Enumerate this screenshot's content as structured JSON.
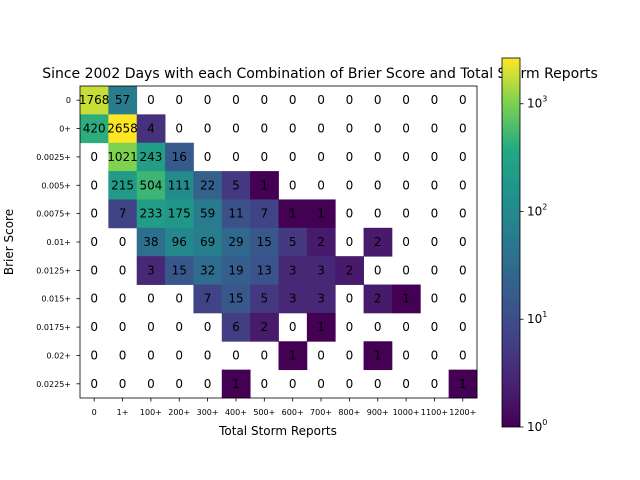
{
  "chart_data": {
    "type": "heatmap",
    "title": "Since 2002 Days with each Combination of Brier Score and Total Storm Reports",
    "xlabel": "Total Storm Reports",
    "ylabel": "Brier Score",
    "x_categories": [
      "0",
      "1+",
      "100+",
      "200+",
      "300+",
      "400+",
      "500+",
      "600+",
      "700+",
      "800+",
      "900+",
      "1000+",
      "1100+",
      "1200+"
    ],
    "y_categories": [
      "0",
      "0+",
      "0.0025+",
      "0.005+",
      "0.0075+",
      "0.01+",
      "0.0125+",
      "0.015+",
      "0.0175+",
      "0.02+",
      "0.0225+"
    ],
    "values": [
      [
        1768,
        57,
        0,
        0,
        0,
        0,
        0,
        0,
        0,
        0,
        0,
        0,
        0,
        0
      ],
      [
        420,
        2658,
        4,
        0,
        0,
        0,
        0,
        0,
        0,
        0,
        0,
        0,
        0,
        0
      ],
      [
        0,
        1021,
        243,
        16,
        0,
        0,
        0,
        0,
        0,
        0,
        0,
        0,
        0,
        0
      ],
      [
        0,
        215,
        504,
        111,
        22,
        5,
        1,
        0,
        0,
        0,
        0,
        0,
        0,
        0
      ],
      [
        0,
        7,
        233,
        175,
        59,
        11,
        7,
        1,
        1,
        0,
        0,
        0,
        0,
        0
      ],
      [
        0,
        0,
        38,
        96,
        69,
        29,
        15,
        5,
        2,
        0,
        2,
        0,
        0,
        0
      ],
      [
        0,
        0,
        3,
        15,
        32,
        19,
        13,
        3,
        3,
        2,
        0,
        0,
        0,
        0
      ],
      [
        0,
        0,
        0,
        0,
        7,
        15,
        5,
        3,
        3,
        0,
        2,
        1,
        0,
        0
      ],
      [
        0,
        0,
        0,
        0,
        0,
        6,
        2,
        0,
        1,
        0,
        0,
        0,
        0,
        0
      ],
      [
        0,
        0,
        0,
        0,
        0,
        0,
        0,
        1,
        0,
        0,
        1,
        0,
        0,
        0
      ],
      [
        0,
        0,
        0,
        0,
        0,
        1,
        0,
        0,
        0,
        0,
        0,
        0,
        0,
        1
      ]
    ],
    "colorscale": "viridis",
    "color_scale_type": "log",
    "colorbar_range": [
      1,
      2658
    ],
    "colorbar_ticks": [
      {
        "value": 1,
        "base": "10",
        "exp": "0"
      },
      {
        "value": 10,
        "base": "10",
        "exp": "1"
      },
      {
        "value": 100,
        "base": "10",
        "exp": "2"
      },
      {
        "value": 1000,
        "base": "10",
        "exp": "3"
      }
    ],
    "zero_cells_blank": true,
    "show_cell_labels": true
  }
}
